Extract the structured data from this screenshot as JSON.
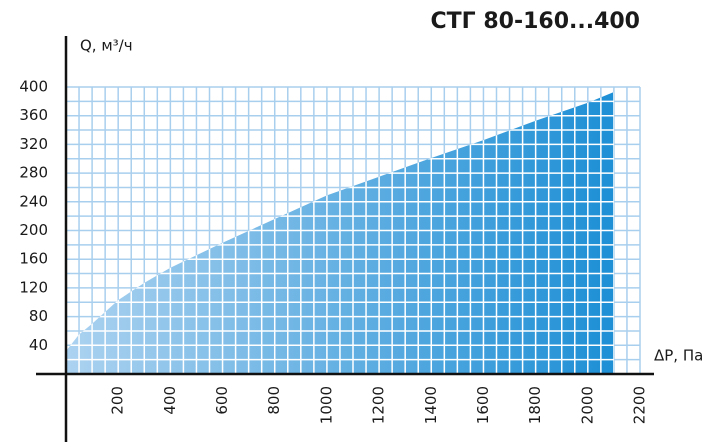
{
  "chart_data": {
    "type": "area",
    "title": "СТГ 80-160...400",
    "y_label": "Q, м³/ч",
    "x_label": "ΔP, Па",
    "x": [
      0,
      50,
      100,
      200,
      300,
      400,
      600,
      800,
      1000,
      1200,
      1400,
      1600,
      1800,
      2000,
      2100
    ],
    "values": [
      32,
      55,
      70,
      103,
      127,
      148,
      183,
      216,
      249,
      275,
      301,
      326,
      353,
      378,
      393
    ],
    "color_start": "#acd2f0",
    "color_end": "#1d8fd5",
    "grid_color": "#a9cfee",
    "xlim": [
      0,
      2200
    ],
    "xticks": [
      200,
      400,
      600,
      800,
      1000,
      1200,
      1400,
      1600,
      1800,
      2000,
      2200
    ],
    "ylim": [
      0,
      400
    ],
    "yticks": [
      40,
      80,
      120,
      160,
      200,
      240,
      280,
      320,
      360,
      400
    ],
    "grid": true
  }
}
